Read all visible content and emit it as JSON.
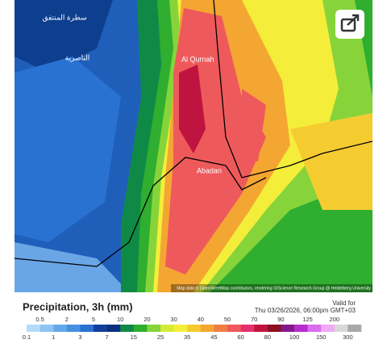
{
  "map": {
    "places": [
      "Al Qurnah",
      "Abadan",
      "الناصرية",
      "سطرة المنتفق"
    ],
    "attribution": "Map data © OpenStreetMap contributors, rendering GIScience Research Group @ Heidelberg University"
  },
  "legend": {
    "title": "Precipitation, 3h (mm)",
    "valid_label": "Valid for",
    "valid_time": "Thu 03/26/2026, 06:00pm GMT+03",
    "levels": [
      0.1,
      0.5,
      1,
      2,
      3,
      5,
      7,
      10,
      15,
      20,
      25,
      30,
      35,
      40,
      45,
      50,
      60,
      70,
      80,
      90,
      100,
      125,
      150,
      200,
      300
    ],
    "colors": [
      "#b4dcf8",
      "#8cc4f2",
      "#64a8ea",
      "#4690e2",
      "#2a72d2",
      "#123f9c",
      "#0b2f7a",
      "#0f8a46",
      "#2fae2f",
      "#86d43a",
      "#d2ec36",
      "#f4ee3a",
      "#f5cc30",
      "#f4a632",
      "#f07e42",
      "#ee5a5c",
      "#e6306c",
      "#c01440",
      "#8c0f22",
      "#84198c",
      "#b72ccc",
      "#dc6cee",
      "#eeaaf2",
      "#d8d8d8",
      "#a8a8a8"
    ]
  }
}
